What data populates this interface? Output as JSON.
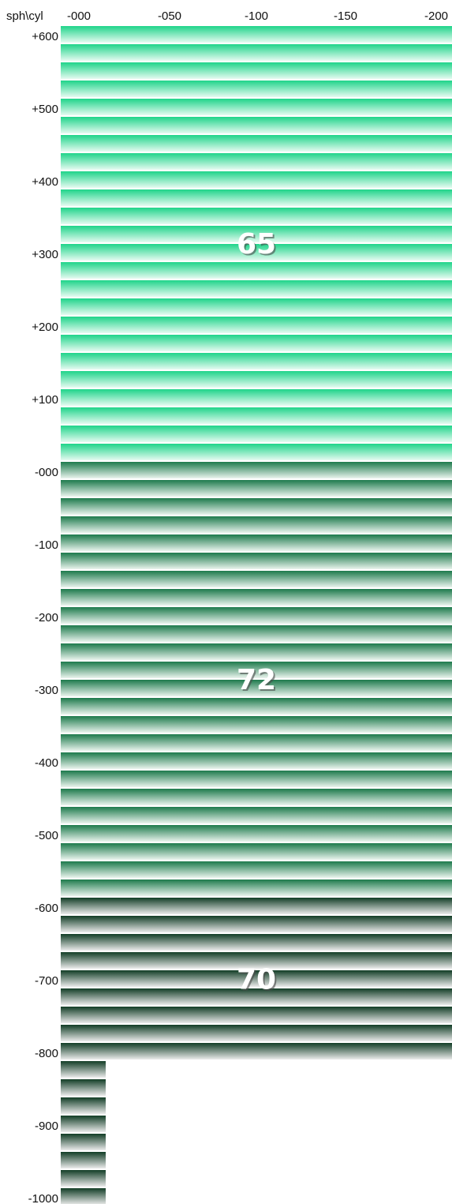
{
  "chart_data": {
    "type": "heatmap",
    "corner_label": "sph\\cyl",
    "x_ticks": [
      "-000",
      "-050",
      "-100",
      "-150",
      "-200"
    ],
    "y_ticks": [
      "+600",
      "+500",
      "+400",
      "+300",
      "+200",
      "+100",
      "-000",
      "-100",
      "-200",
      "-300",
      "-400",
      "-500",
      "-600",
      "-700",
      "-800",
      "-900",
      "-1000"
    ],
    "sph_range": [
      600,
      -1000
    ],
    "sph_step": 25,
    "cyl_range": [
      0,
      -200
    ],
    "zones": [
      {
        "label": "65",
        "sph_from": 600,
        "sph_to": 25,
        "cyl_from": 0,
        "cyl_to": -200,
        "color_top": "#1fd48a",
        "color_bottom": "#e6fbf1"
      },
      {
        "label": "72",
        "sph_from": 0,
        "sph_to": -575,
        "cyl_from": 0,
        "cyl_to": -200,
        "color_top": "#1d7a4c",
        "color_bottom": "#eaf4ee"
      },
      {
        "label": "70",
        "sph_from": -600,
        "sph_to": -800,
        "cyl_from": 0,
        "cyl_to": -200,
        "color_top": "#123d26",
        "color_bottom": "#ececec"
      },
      {
        "label": "",
        "sph_from": -825,
        "sph_to": -1000,
        "cyl_from": 0,
        "cyl_to": -25,
        "color_top": "#123d26",
        "color_bottom": "#ececec"
      }
    ]
  }
}
